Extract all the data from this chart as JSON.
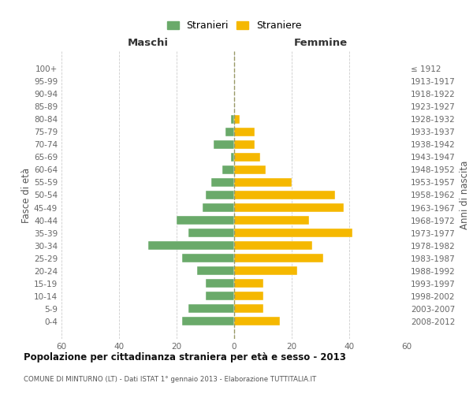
{
  "age_groups": [
    "100+",
    "95-99",
    "90-94",
    "85-89",
    "80-84",
    "75-79",
    "70-74",
    "65-69",
    "60-64",
    "55-59",
    "50-54",
    "45-49",
    "40-44",
    "35-39",
    "30-34",
    "25-29",
    "20-24",
    "15-19",
    "10-14",
    "5-9",
    "0-4"
  ],
  "birth_years": [
    "≤ 1912",
    "1913-1917",
    "1918-1922",
    "1923-1927",
    "1928-1932",
    "1933-1937",
    "1938-1942",
    "1943-1947",
    "1948-1952",
    "1953-1957",
    "1958-1962",
    "1963-1967",
    "1968-1972",
    "1973-1977",
    "1978-1982",
    "1983-1987",
    "1988-1992",
    "1993-1997",
    "1998-2002",
    "2003-2007",
    "2008-2012"
  ],
  "maschi": [
    0,
    0,
    0,
    0,
    1,
    3,
    7,
    1,
    4,
    8,
    10,
    11,
    20,
    16,
    30,
    18,
    13,
    10,
    10,
    16,
    18
  ],
  "femmine": [
    0,
    0,
    0,
    0,
    2,
    7,
    7,
    9,
    11,
    20,
    35,
    38,
    26,
    41,
    27,
    31,
    22,
    10,
    10,
    10,
    16
  ],
  "color_maschi": "#6aaa6a",
  "color_femmine": "#f5b800",
  "title": "Popolazione per cittadinanza straniera per età e sesso - 2013",
  "subtitle": "COMUNE DI MINTURNO (LT) - Dati ISTAT 1° gennaio 2013 - Elaborazione TUTTITALIA.IT",
  "label_maschi": "Maschi",
  "label_femmine": "Femmine",
  "ylabel_left": "Fasce di età",
  "ylabel_right": "Anni di nascita",
  "legend_maschi": "Stranieri",
  "legend_femmine": "Straniere",
  "xlim": 60,
  "background_color": "#ffffff",
  "grid_color": "#cccccc",
  "vline_color": "#999966",
  "tick_color": "#666666"
}
